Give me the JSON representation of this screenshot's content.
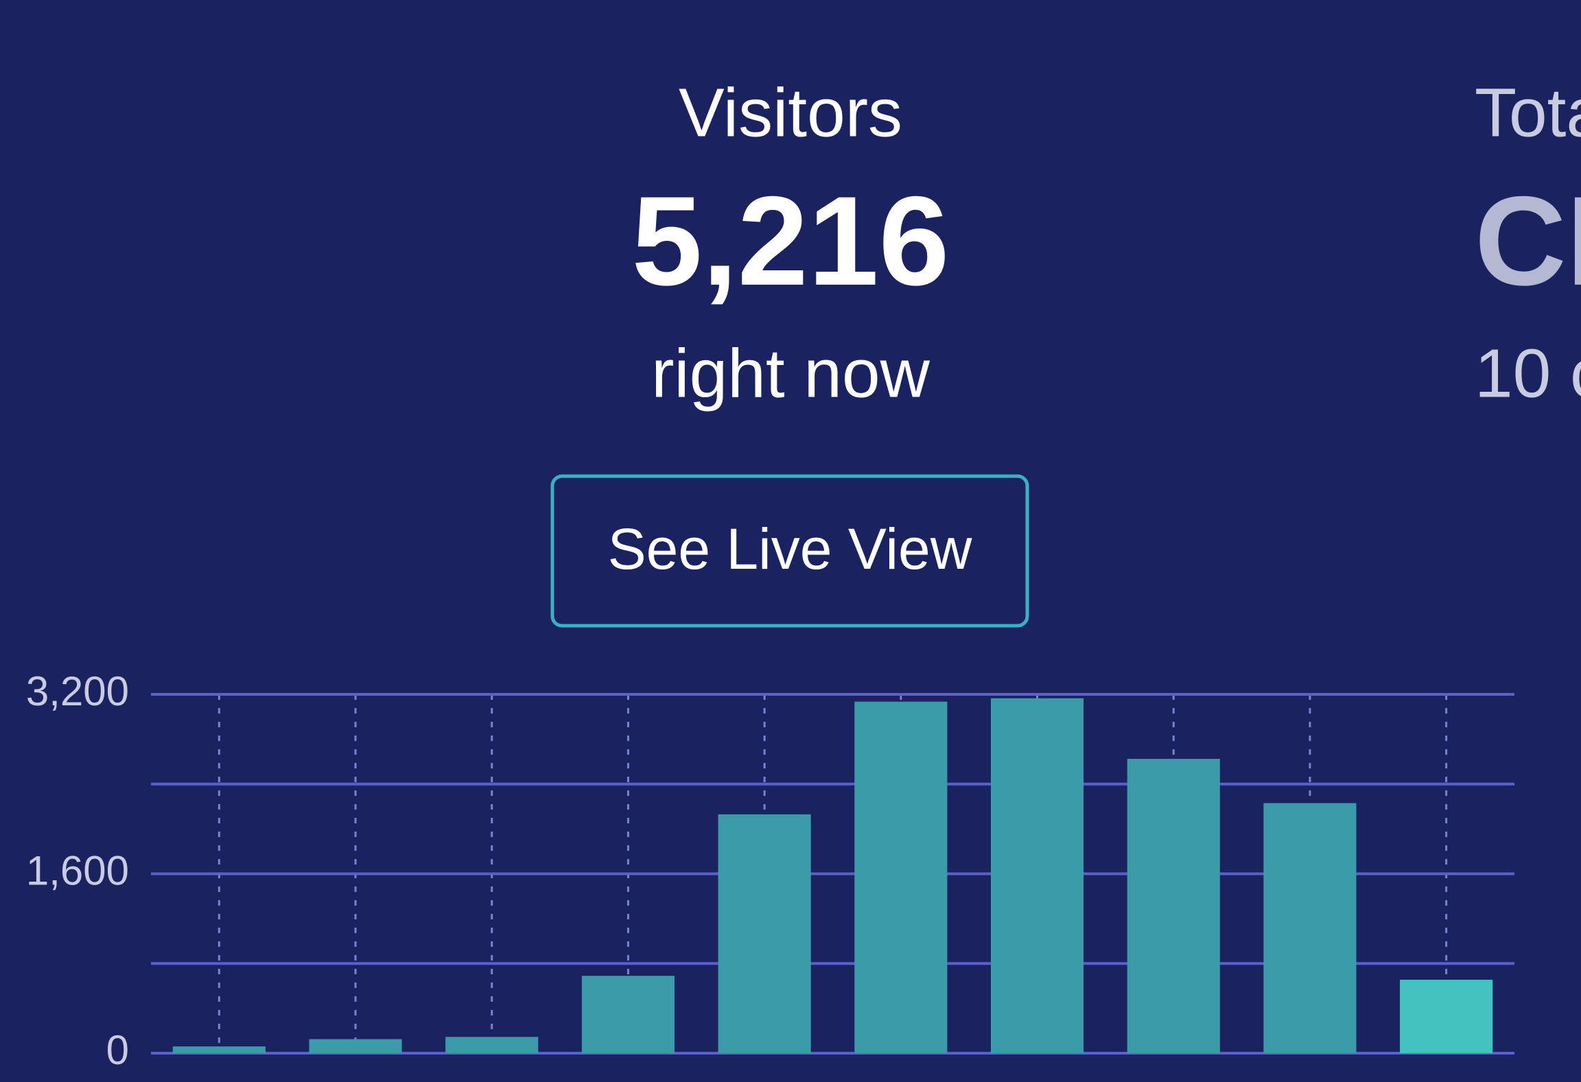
{
  "header": {
    "title": "Visitors",
    "value": "5,216",
    "subtitle": "right now",
    "button": "See Live View"
  },
  "side_panel": {
    "title": "Tota",
    "value": "CL",
    "subtitle": "10 c"
  },
  "chart_data": {
    "type": "bar",
    "categories": [
      null,
      null,
      null,
      null,
      null,
      null,
      null,
      null,
      null,
      null
    ],
    "values": [
      60,
      125,
      145,
      690,
      2130,
      3135,
      3165,
      2625,
      2230,
      655
    ],
    "colors": [
      "#3b9ba8",
      "#3b9ba8",
      "#3b9ba8",
      "#3b9ba8",
      "#3b9ba8",
      "#3b9ba8",
      "#3b9ba8",
      "#3b9ba8",
      "#3b9ba8",
      "#44c2c0"
    ],
    "ylim": [
      0,
      3200
    ],
    "yticks": [
      0,
      {
        "value": 1600,
        "label": "1,600"
      },
      {
        "value": 3200,
        "label": "3,200"
      }
    ],
    "minor_gridlines": [
      800,
      2400
    ],
    "grid": true
  }
}
